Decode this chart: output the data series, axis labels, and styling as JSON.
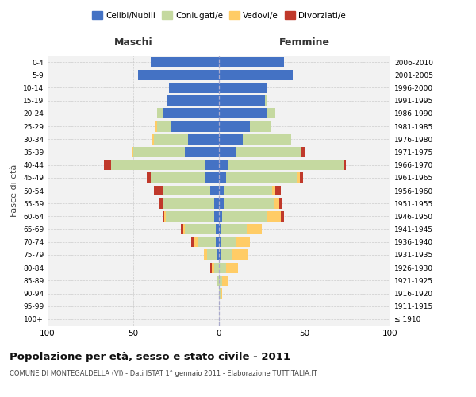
{
  "age_groups": [
    "100+",
    "95-99",
    "90-94",
    "85-89",
    "80-84",
    "75-79",
    "70-74",
    "65-69",
    "60-64",
    "55-59",
    "50-54",
    "45-49",
    "40-44",
    "35-39",
    "30-34",
    "25-29",
    "20-24",
    "15-19",
    "10-14",
    "5-9",
    "0-4"
  ],
  "birth_years": [
    "≤ 1910",
    "1911-1915",
    "1916-1920",
    "1921-1925",
    "1926-1930",
    "1931-1935",
    "1936-1940",
    "1941-1945",
    "1946-1950",
    "1951-1955",
    "1956-1960",
    "1961-1965",
    "1966-1970",
    "1971-1975",
    "1976-1980",
    "1981-1985",
    "1986-1990",
    "1991-1995",
    "1996-2000",
    "2001-2005",
    "2006-2010"
  ],
  "maschi": {
    "celibi": [
      0,
      0,
      0,
      0,
      0,
      1,
      2,
      2,
      3,
      3,
      5,
      8,
      8,
      20,
      18,
      28,
      33,
      30,
      29,
      47,
      40
    ],
    "coniugati": [
      0,
      0,
      0,
      1,
      3,
      6,
      10,
      18,
      28,
      30,
      28,
      32,
      55,
      30,
      20,
      8,
      3,
      0,
      0,
      0,
      0
    ],
    "vedovi": [
      0,
      0,
      0,
      0,
      1,
      2,
      3,
      1,
      1,
      0,
      0,
      0,
      0,
      1,
      1,
      1,
      0,
      0,
      0,
      0,
      0
    ],
    "divorziati": [
      0,
      0,
      0,
      0,
      1,
      0,
      1,
      1,
      1,
      2,
      5,
      2,
      4,
      0,
      0,
      0,
      0,
      0,
      0,
      0,
      0
    ]
  },
  "femmine": {
    "nubili": [
      0,
      0,
      0,
      0,
      0,
      1,
      1,
      1,
      2,
      3,
      3,
      4,
      5,
      10,
      14,
      18,
      28,
      27,
      28,
      43,
      38
    ],
    "coniugate": [
      0,
      0,
      1,
      2,
      4,
      7,
      9,
      15,
      26,
      29,
      28,
      42,
      68,
      38,
      28,
      12,
      5,
      1,
      0,
      0,
      0
    ],
    "vedove": [
      0,
      0,
      1,
      3,
      7,
      9,
      8,
      9,
      8,
      3,
      2,
      1,
      0,
      0,
      0,
      0,
      0,
      0,
      0,
      0,
      0
    ],
    "divorziate": [
      0,
      0,
      0,
      0,
      0,
      0,
      0,
      0,
      2,
      2,
      3,
      2,
      1,
      2,
      0,
      0,
      0,
      0,
      0,
      0,
      0
    ]
  },
  "colors": {
    "celibi_nubili": "#4472C4",
    "coniugati": "#C5D9A0",
    "vedovi": "#FFCC66",
    "divorziati": "#C0392B"
  },
  "xlim": 100,
  "title_main": "Popolazione per età, sesso e stato civile - 2011",
  "title_sub": "COMUNE DI MONTEGALDELLA (VI) - Dati ISTAT 1° gennaio 2011 - Elaborazione TUTTITALIA.IT",
  "xlabel_left": "Maschi",
  "xlabel_right": "Femmine",
  "ylabel_left": "Fasce di età",
  "legend_labels": [
    "Celibi/Nubili",
    "Coniugati/e",
    "Vedovi/e",
    "Divorziati/e"
  ],
  "background_color": "#FFFFFF",
  "grid_color": "#CCCCCC",
  "bar_height": 0.8
}
